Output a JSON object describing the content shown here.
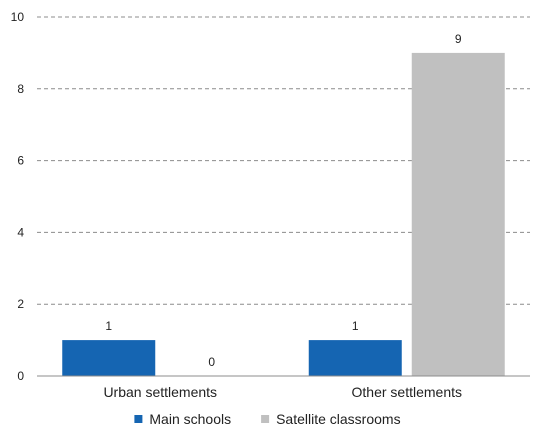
{
  "chart_data": {
    "type": "bar",
    "categories": [
      "Urban settlements",
      "Other settlements"
    ],
    "series": [
      {
        "name": "Main schools",
        "values": [
          1,
          1
        ],
        "color": "#1565b2"
      },
      {
        "name": "Satellite classrooms",
        "values": [
          0,
          9
        ],
        "color": "#c0c0c0"
      }
    ],
    "data_labels": [
      [
        "1",
        "1"
      ],
      [
        "0",
        "9"
      ]
    ],
    "ylim": [
      0,
      10
    ],
    "yticks": [
      0,
      2,
      4,
      6,
      8,
      10
    ],
    "title": "",
    "xlabel": "",
    "ylabel": "",
    "grid": true,
    "legend_position": "bottom"
  }
}
